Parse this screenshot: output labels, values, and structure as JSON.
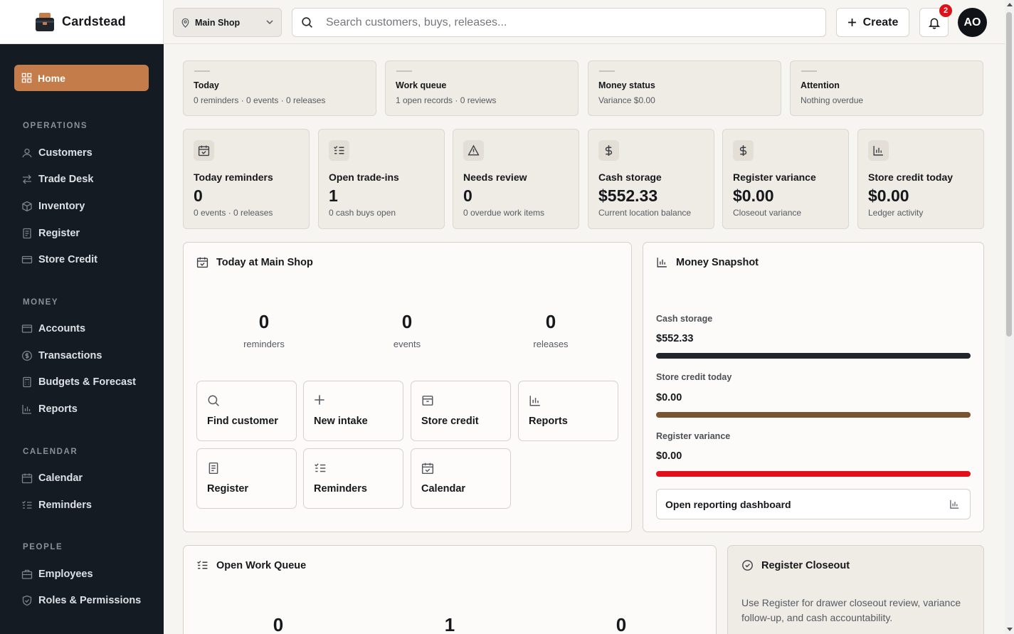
{
  "brand": {
    "name": "Cardstead"
  },
  "sidebar": {
    "home": "Home",
    "sections": [
      {
        "title": "OPERATIONS",
        "items": [
          "Customers",
          "Trade Desk",
          "Inventory",
          "Register",
          "Store Credit"
        ]
      },
      {
        "title": "MONEY",
        "items": [
          "Accounts",
          "Transactions",
          "Budgets & Forecast",
          "Reports"
        ]
      },
      {
        "title": "CALENDAR",
        "items": [
          "Calendar",
          "Reminders"
        ]
      },
      {
        "title": "PEOPLE",
        "items": [
          "Employees",
          "Roles & Permissions"
        ]
      }
    ]
  },
  "topbar": {
    "location": "Main Shop",
    "search_placeholder": "Search customers, buys, releases...",
    "create_label": "Create",
    "notification_count": "2",
    "user_initials": "AO"
  },
  "summary": [
    {
      "title": "Today",
      "sub": "0 reminders · 0 events · 0 releases"
    },
    {
      "title": "Work queue",
      "sub": "1 open records · 0 reviews"
    },
    {
      "title": "Money status",
      "sub": "Variance $0.00"
    },
    {
      "title": "Attention",
      "sub": "Nothing overdue"
    }
  ],
  "kpis": [
    {
      "label": "Today reminders",
      "value": "0",
      "sub": "0 events · 0 releases",
      "icon": "calendar-check-icon"
    },
    {
      "label": "Open trade-ins",
      "value": "1",
      "sub": "0 cash buys open",
      "icon": "list-check-icon"
    },
    {
      "label": "Needs review",
      "value": "0",
      "sub": "0 overdue work items",
      "icon": "warning-icon"
    },
    {
      "label": "Cash storage",
      "value": "$552.33",
      "sub": "Current location balance",
      "icon": "dollar-icon"
    },
    {
      "label": "Register variance",
      "value": "$0.00",
      "sub": "Closeout variance",
      "icon": "dollar-icon"
    },
    {
      "label": "Store credit today",
      "value": "$0.00",
      "sub": "Ledger activity",
      "icon": "bar-chart-icon"
    }
  ],
  "today": {
    "title": "Today at Main Shop",
    "counts": [
      {
        "n": "0",
        "label": "reminders"
      },
      {
        "n": "0",
        "label": "events"
      },
      {
        "n": "0",
        "label": "releases"
      }
    ],
    "actions": [
      "Find customer",
      "New intake",
      "Store credit",
      "Reports",
      "Register",
      "Reminders",
      "Calendar"
    ]
  },
  "money": {
    "title": "Money Snapshot",
    "rows": [
      {
        "label": "Cash storage",
        "value": "$552.33",
        "color": "#22262c"
      },
      {
        "label": "Store credit today",
        "value": "$0.00",
        "color": "#7a5330"
      },
      {
        "label": "Register variance",
        "value": "$0.00",
        "color": "#e3101b"
      }
    ],
    "link": "Open reporting dashboard"
  },
  "workqueue": {
    "title": "Open Work Queue",
    "counts": [
      "0",
      "1",
      "0"
    ]
  },
  "closeout": {
    "title": "Register Closeout",
    "text": "Use Register for drawer closeout review, variance follow-up, and cash accountability."
  },
  "colors": {
    "accent": "#c47d4a",
    "sidebar": "#151b23",
    "badge": "#dc111b"
  }
}
